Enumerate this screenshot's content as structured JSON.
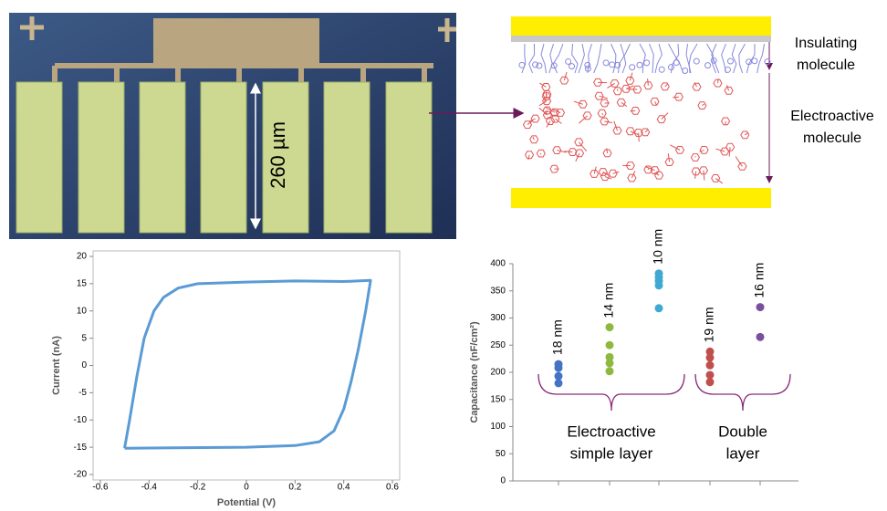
{
  "figure": {
    "scale_label": "260 µm",
    "insulating": [
      "Insulating",
      "molecule"
    ],
    "electroactive": [
      "Electroactive",
      "molecule"
    ]
  },
  "chart_data": [
    {
      "type": "line",
      "x_label": "Potential (V)",
      "y_label": "Current (nA)",
      "xlim": [
        -0.6,
        0.6
      ],
      "xticks": [
        -0.6,
        -0.4,
        -0.2,
        0,
        0.2,
        0.4,
        0.6
      ],
      "ylim": [
        -20,
        20
      ],
      "yticks": [
        -20,
        -15,
        -10,
        -5,
        0,
        5,
        10,
        15,
        20
      ],
      "series": [
        {
          "color": "#5b9bd5",
          "x": [
            -0.5,
            -0.3,
            0,
            0.2,
            0.3,
            0.36,
            0.4,
            0.43,
            0.46,
            0.49,
            0.51,
            0.51,
            0.4,
            0.2,
            0,
            -0.2,
            -0.28,
            -0.34,
            -0.38,
            -0.42,
            -0.45,
            -0.48,
            -0.5,
            -0.5
          ],
          "values": [
            -15.2,
            -15.1,
            -15,
            -14.7,
            -14,
            -12,
            -8,
            -3,
            3,
            10,
            15.5,
            15.6,
            15.4,
            15.5,
            15.3,
            15,
            14.2,
            12.5,
            10,
            5,
            -2,
            -10,
            -15,
            -15.2
          ]
        }
      ]
    },
    {
      "type": "scatter",
      "y_label": "Capacitance (nF/cm²)",
      "ylim": [
        0,
        400
      ],
      "yticks": [
        0,
        50,
        100,
        150,
        200,
        250,
        300,
        350,
        400
      ],
      "series": [
        {
          "name": "18 nm",
          "color": "#4472c4",
          "values": [
            180,
            193,
            208,
            215
          ]
        },
        {
          "name": "14 nm",
          "color": "#8fb83f",
          "values": [
            202,
            217,
            228,
            250,
            283
          ]
        },
        {
          "name": "10 nm",
          "color": "#3fa9d4",
          "values": [
            318,
            360,
            368,
            375,
            382
          ]
        },
        {
          "name": "19 nm",
          "color": "#c0504d",
          "values": [
            182,
            195,
            213,
            227,
            238
          ]
        },
        {
          "name": "16 nm",
          "color": "#7b4fa0",
          "values": [
            265,
            320
          ]
        }
      ],
      "groups": [
        {
          "lines": [
            "Electroactive",
            "simple layer"
          ]
        },
        {
          "lines": [
            "Double",
            "layer"
          ]
        }
      ]
    }
  ]
}
